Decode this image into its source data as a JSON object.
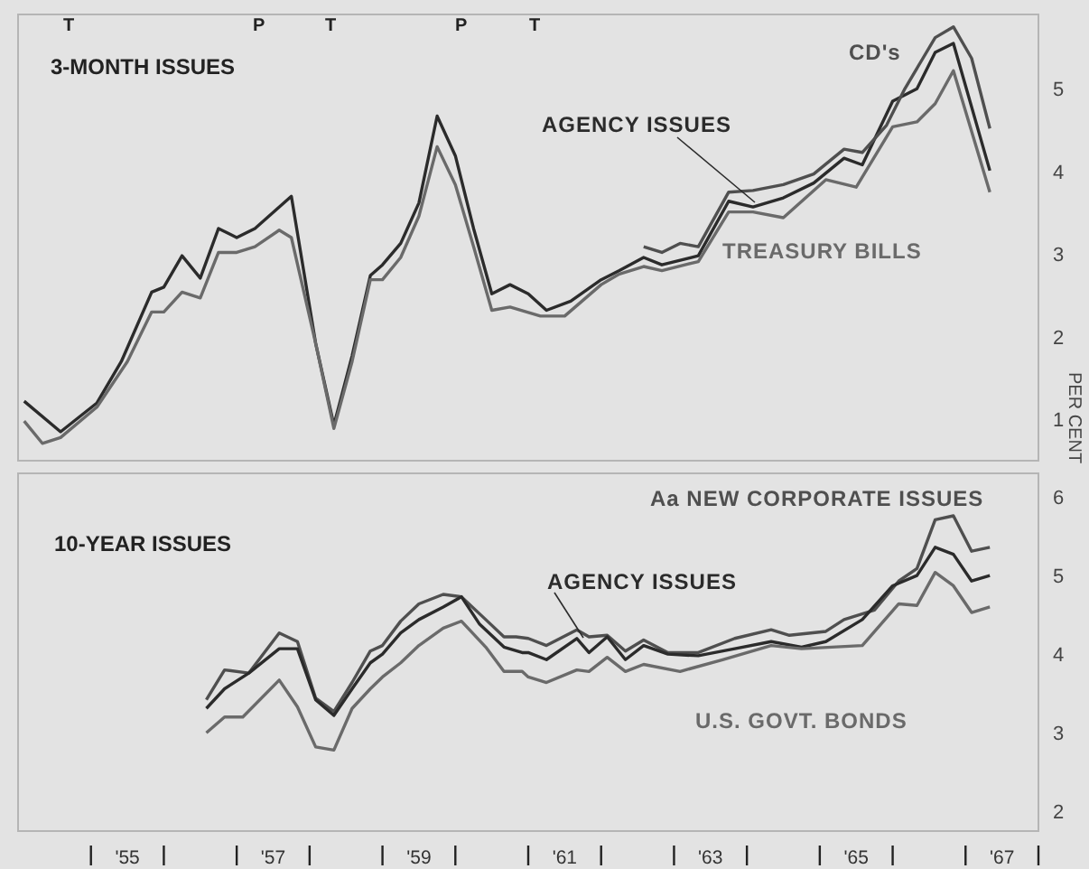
{
  "chart_data": [
    {
      "type": "line",
      "title": "3-MONTH ISSUES",
      "ylabel": "PER CENT",
      "xlim": [
        "1954-01",
        "1968-01"
      ],
      "ylim": [
        0.5,
        5.9
      ],
      "yticks": [
        1,
        2,
        3,
        4,
        5
      ],
      "tick_labels": "y",
      "annotations": [
        "T",
        "P",
        "T",
        "P",
        "T"
      ],
      "series": [
        {
          "name": "AGENCY ISSUES",
          "color": "#2b2b2b",
          "x": [
            "1954-02",
            "1954-08",
            "1955-02",
            "1955-06",
            "1955-11",
            "1956-01",
            "1956-04",
            "1956-07",
            "1956-10",
            "1957-01",
            "1957-04",
            "1957-10",
            "1958-02",
            "1958-05",
            "1958-08",
            "1958-11",
            "1959-01",
            "1959-04",
            "1959-07",
            "1959-10",
            "1960-01",
            "1960-04",
            "1960-07",
            "1960-10",
            "1961-01",
            "1961-04",
            "1961-08",
            "1962-01",
            "1962-04",
            "1962-08",
            "1962-11",
            "1963-05",
            "1963-10",
            "1964-02",
            "1964-07",
            "1964-12",
            "1965-05",
            "1965-08",
            "1966-01",
            "1966-05",
            "1966-08",
            "1966-11",
            "1967-05"
          ],
          "values": [
            1.22,
            0.85,
            1.2,
            1.7,
            2.54,
            2.6,
            2.98,
            2.71,
            3.31,
            3.2,
            3.31,
            3.7,
            1.92,
            0.93,
            1.77,
            2.74,
            2.87,
            3.13,
            3.62,
            4.67,
            4.19,
            3.31,
            2.52,
            2.63,
            2.52,
            2.32,
            2.43,
            2.69,
            2.8,
            2.96,
            2.87,
            2.98,
            3.64,
            3.57,
            3.68,
            3.86,
            4.16,
            4.08,
            4.85,
            5.0,
            5.44,
            5.55,
            4.01
          ]
        },
        {
          "name": "TREASURY BILLS",
          "color": "#6a6a6a",
          "x": [
            "1954-02",
            "1954-05",
            "1954-08",
            "1955-02",
            "1955-07",
            "1955-11",
            "1956-01",
            "1956-04",
            "1956-07",
            "1956-10",
            "1957-01",
            "1957-04",
            "1957-08",
            "1957-10",
            "1958-02",
            "1958-05",
            "1958-08",
            "1958-11",
            "1959-01",
            "1959-04",
            "1959-07",
            "1959-10",
            "1960-01",
            "1960-04",
            "1960-07",
            "1960-10",
            "1961-03",
            "1961-07",
            "1962-01",
            "1962-04",
            "1962-08",
            "1962-11",
            "1963-05",
            "1963-10",
            "1964-02",
            "1964-07",
            "1965-02",
            "1965-07",
            "1966-01",
            "1966-05",
            "1966-08",
            "1966-11",
            "1967-05"
          ],
          "values": [
            0.98,
            0.71,
            0.78,
            1.15,
            1.7,
            2.3,
            2.3,
            2.54,
            2.47,
            3.02,
            3.02,
            3.09,
            3.29,
            3.2,
            1.92,
            0.89,
            1.7,
            2.69,
            2.69,
            2.96,
            3.46,
            4.3,
            3.84,
            3.09,
            2.32,
            2.36,
            2.25,
            2.25,
            2.63,
            2.76,
            2.85,
            2.8,
            2.91,
            3.51,
            3.51,
            3.44,
            3.9,
            3.81,
            4.54,
            4.6,
            4.82,
            5.22,
            3.75
          ]
        },
        {
          "name": "CD's",
          "color": "#4f4f4f",
          "x": [
            "1962-08",
            "1962-11",
            "1963-02",
            "1963-05",
            "1963-10",
            "1964-02",
            "1964-07",
            "1964-12",
            "1965-05",
            "1965-08",
            "1965-12",
            "1966-03",
            "1966-08",
            "1966-11",
            "1967-02",
            "1967-05"
          ],
          "values": [
            3.09,
            3.02,
            3.13,
            3.09,
            3.75,
            3.77,
            3.84,
            3.97,
            4.27,
            4.23,
            4.56,
            5.0,
            5.62,
            5.75,
            5.37,
            4.52
          ]
        }
      ]
    },
    {
      "type": "line",
      "title": "10-YEAR ISSUES",
      "xlim": [
        "1954-01",
        "1968-01"
      ],
      "ylim": [
        1.75,
        6.3
      ],
      "yticks": [
        2,
        3,
        4,
        5,
        6
      ],
      "xticks": [
        {
          "value": "1955-01",
          "label": null
        },
        {
          "value": "1955-07",
          "label": "'55"
        },
        {
          "value": "1956-01",
          "label": null
        },
        {
          "value": "1957-01",
          "label": null
        },
        {
          "value": "1957-07",
          "label": "'57"
        },
        {
          "value": "1958-01",
          "label": null
        },
        {
          "value": "1959-01",
          "label": null
        },
        {
          "value": "1959-07",
          "label": "'59"
        },
        {
          "value": "1960-01",
          "label": null
        },
        {
          "value": "1961-01",
          "label": null
        },
        {
          "value": "1961-07",
          "label": "'61"
        },
        {
          "value": "1962-01",
          "label": null
        },
        {
          "value": "1963-01",
          "label": null
        },
        {
          "value": "1963-07",
          "label": "'63"
        },
        {
          "value": "1964-01",
          "label": null
        },
        {
          "value": "1965-01",
          "label": null
        },
        {
          "value": "1965-07",
          "label": "'65"
        },
        {
          "value": "1966-01",
          "label": null
        },
        {
          "value": "1967-01",
          "label": null
        },
        {
          "value": "1967-07",
          "label": "'67"
        },
        {
          "value": "1968-01",
          "label": null
        }
      ],
      "series": [
        {
          "name": "Aa NEW CORPORATE ISSUES",
          "color": "#4f4f4f",
          "x": [
            "1956-08",
            "1956-11",
            "1957-03",
            "1957-08",
            "1957-11",
            "1958-02",
            "1958-05",
            "1958-08",
            "1958-11",
            "1959-01",
            "1959-04",
            "1959-07",
            "1959-11",
            "1960-02",
            "1960-06",
            "1960-09",
            "1960-11",
            "1961-01",
            "1961-04",
            "1961-09",
            "1961-11",
            "1962-02",
            "1962-05",
            "1962-08",
            "1962-12",
            "1963-05",
            "1963-11",
            "1964-05",
            "1964-08",
            "1965-02",
            "1965-05",
            "1965-10",
            "1966-02",
            "1966-05",
            "1966-08",
            "1966-11",
            "1967-02",
            "1967-05"
          ],
          "values": [
            3.42,
            3.8,
            3.76,
            4.27,
            4.16,
            3.44,
            3.27,
            3.64,
            4.04,
            4.11,
            4.42,
            4.64,
            4.76,
            4.73,
            4.44,
            4.22,
            4.22,
            4.2,
            4.11,
            4.31,
            4.22,
            4.24,
            4.04,
            4.18,
            4.02,
            4.02,
            4.2,
            4.31,
            4.24,
            4.29,
            4.44,
            4.56,
            4.93,
            5.09,
            5.71,
            5.76,
            5.31,
            5.36
          ]
        },
        {
          "name": "AGENCY ISSUES",
          "color": "#2b2b2b",
          "x": [
            "1956-08",
            "1956-11",
            "1957-03",
            "1957-08",
            "1957-11",
            "1958-02",
            "1958-05",
            "1958-08",
            "1958-11",
            "1959-01",
            "1959-04",
            "1959-07",
            "1959-11",
            "1960-02",
            "1960-05",
            "1960-09",
            "1960-12",
            "1961-01",
            "1961-04",
            "1961-09",
            "1961-11",
            "1962-02",
            "1962-05",
            "1962-08",
            "1962-12",
            "1963-05",
            "1963-11",
            "1964-05",
            "1964-10",
            "1965-02",
            "1965-08",
            "1966-01",
            "1966-05",
            "1966-08",
            "1966-11",
            "1967-02",
            "1967-05"
          ],
          "values": [
            3.31,
            3.56,
            3.76,
            4.07,
            4.07,
            3.42,
            3.22,
            3.56,
            3.89,
            4.0,
            4.27,
            4.44,
            4.6,
            4.73,
            4.38,
            4.09,
            4.02,
            4.02,
            3.93,
            4.2,
            4.02,
            4.22,
            3.93,
            4.11,
            4.0,
            3.98,
            4.07,
            4.16,
            4.09,
            4.16,
            4.44,
            4.87,
            5.0,
            5.36,
            5.27,
            4.93,
            5.0
          ]
        },
        {
          "name": "U.S. GOVT. BONDS",
          "color": "#6a6a6a",
          "x": [
            "1956-08",
            "1956-11",
            "1957-02",
            "1957-08",
            "1957-11",
            "1958-02",
            "1958-05",
            "1958-08",
            "1958-11",
            "1959-01",
            "1959-04",
            "1959-07",
            "1959-11",
            "1960-02",
            "1960-06",
            "1960-09",
            "1960-12",
            "1961-01",
            "1961-04",
            "1961-09",
            "1961-11",
            "1962-02",
            "1962-05",
            "1962-08",
            "1963-02",
            "1963-09",
            "1964-05",
            "1964-10",
            "1965-08",
            "1966-02",
            "1966-05",
            "1966-08",
            "1966-11",
            "1967-02",
            "1967-05"
          ],
          "values": [
            3.0,
            3.2,
            3.2,
            3.67,
            3.33,
            2.82,
            2.78,
            3.31,
            3.56,
            3.71,
            3.89,
            4.11,
            4.33,
            4.42,
            4.09,
            3.78,
            3.78,
            3.71,
            3.64,
            3.8,
            3.78,
            3.96,
            3.78,
            3.87,
            3.78,
            3.93,
            4.11,
            4.07,
            4.11,
            4.64,
            4.62,
            5.04,
            4.87,
            4.53,
            4.6
          ]
        }
      ]
    }
  ]
}
